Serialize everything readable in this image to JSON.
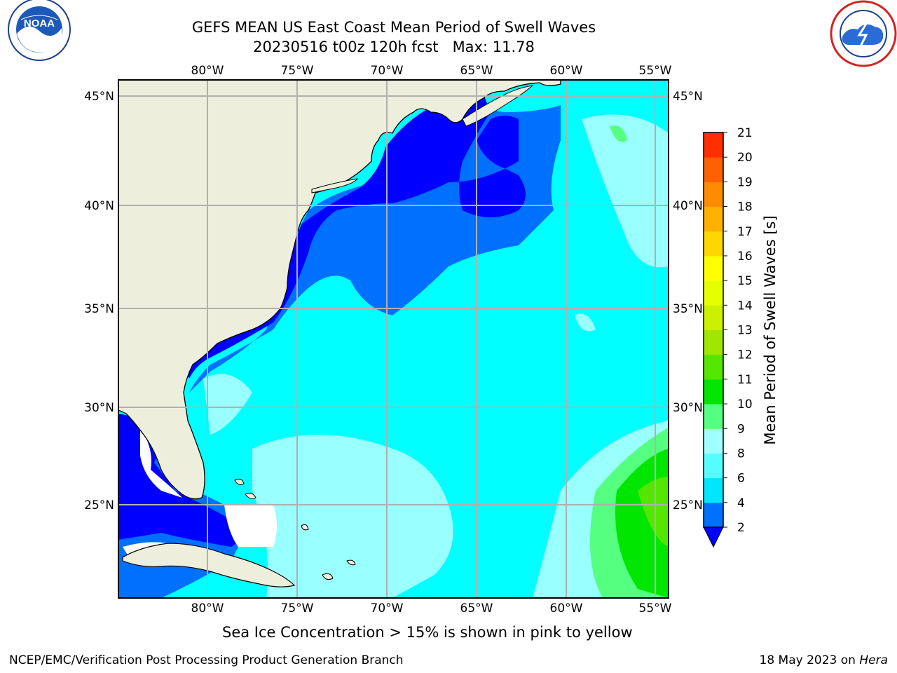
{
  "header": {
    "title_line1": "GEFS MEAN US East Coast Mean Period of Swell Waves",
    "title_line2": "20230516 t00z 120h fcst   Max: 11.78"
  },
  "logos": {
    "left": {
      "name": "NOAA",
      "text": "NOAA",
      "ring_text": "NATIONAL OCEANIC AND ATMOSPHERIC ADMINISTRATION · U.S. DEPARTMENT OF COMMERCE"
    },
    "right": {
      "name": "National Weather Service",
      "ring_text": "NATIONAL WEATHER SERVICE"
    }
  },
  "map": {
    "projection": "lat-lon",
    "extent": {
      "lon_min": -85,
      "lon_max": -54,
      "lat_min": 20.5,
      "lat_max": 45.8
    },
    "lon_ticks": [
      -80,
      -75,
      -70,
      -65,
      -60,
      -55
    ],
    "lat_ticks": [
      25,
      30,
      35,
      40,
      45
    ],
    "lon_tick_labels": [
      "80°W",
      "75°W",
      "70°W",
      "65°W",
      "60°W",
      "55°W"
    ],
    "lat_tick_labels": [
      "25°N",
      "30°N",
      "35°N",
      "40°N",
      "45°N"
    ],
    "gridlines": true,
    "colors": {
      "land": "#eeeedc",
      "ocean_base": "#00ffff",
      "gridline": "#b0b0b0",
      "coast": "#000000"
    }
  },
  "colorbar": {
    "label": "Mean Period of Swell Waves [s]",
    "ticks": [
      "2",
      "4",
      "6",
      "8",
      "9",
      "10",
      "11",
      "12",
      "13",
      "14",
      "15",
      "16",
      "17",
      "18",
      "19",
      "20",
      "21"
    ],
    "colors": [
      "#0070ff",
      "#00e6ff",
      "#55ffff",
      "#a0ffff",
      "#55ff80",
      "#00e600",
      "#55e600",
      "#a0e600",
      "#ccf000",
      "#e6ff00",
      "#ffff00",
      "#ffd700",
      "#ffb000",
      "#ff8c00",
      "#ff6000",
      "#ff3000",
      "#ff0000"
    ],
    "under_color": "#0000ff"
  },
  "note": "Sea Ice Concentration > 15% is shown in pink to yellow",
  "footer": {
    "left": "NCEP/EMC/Verification Post Processing Product Generation Branch",
    "right_date": "18 May 2023 on ",
    "right_host": "Hera"
  }
}
